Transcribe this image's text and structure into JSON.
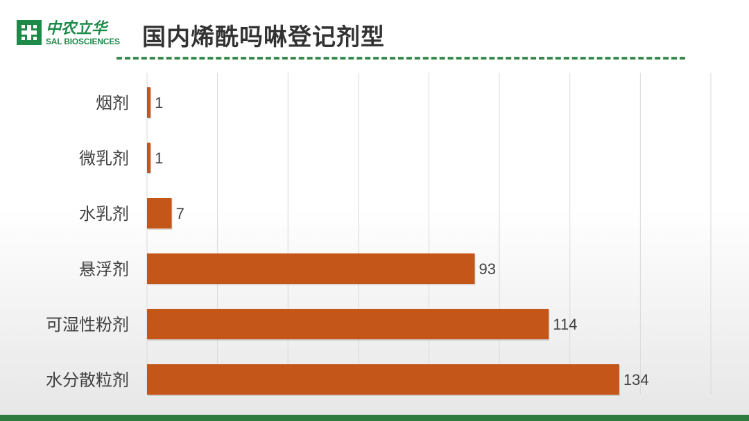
{
  "logo": {
    "cn": "中农立华",
    "en": "SAL BIOSCIENCES"
  },
  "title": "国内烯酰吗啉登记剂型",
  "colors": {
    "bar": "#c5561a",
    "brand": "#1e8a4a",
    "grid": "#d9d9d9"
  },
  "chart_data": {
    "type": "bar",
    "orientation": "horizontal",
    "title": "国内烯酰吗啉登记剂型",
    "categories": [
      "烟剂",
      "微乳剂",
      "水乳剂",
      "悬浮剂",
      "可湿性粉剂",
      "水分散粒剂"
    ],
    "values": [
      1,
      1,
      7,
      93,
      114,
      134
    ],
    "xlim": [
      0,
      160
    ],
    "grid": true,
    "data_labels": true
  }
}
